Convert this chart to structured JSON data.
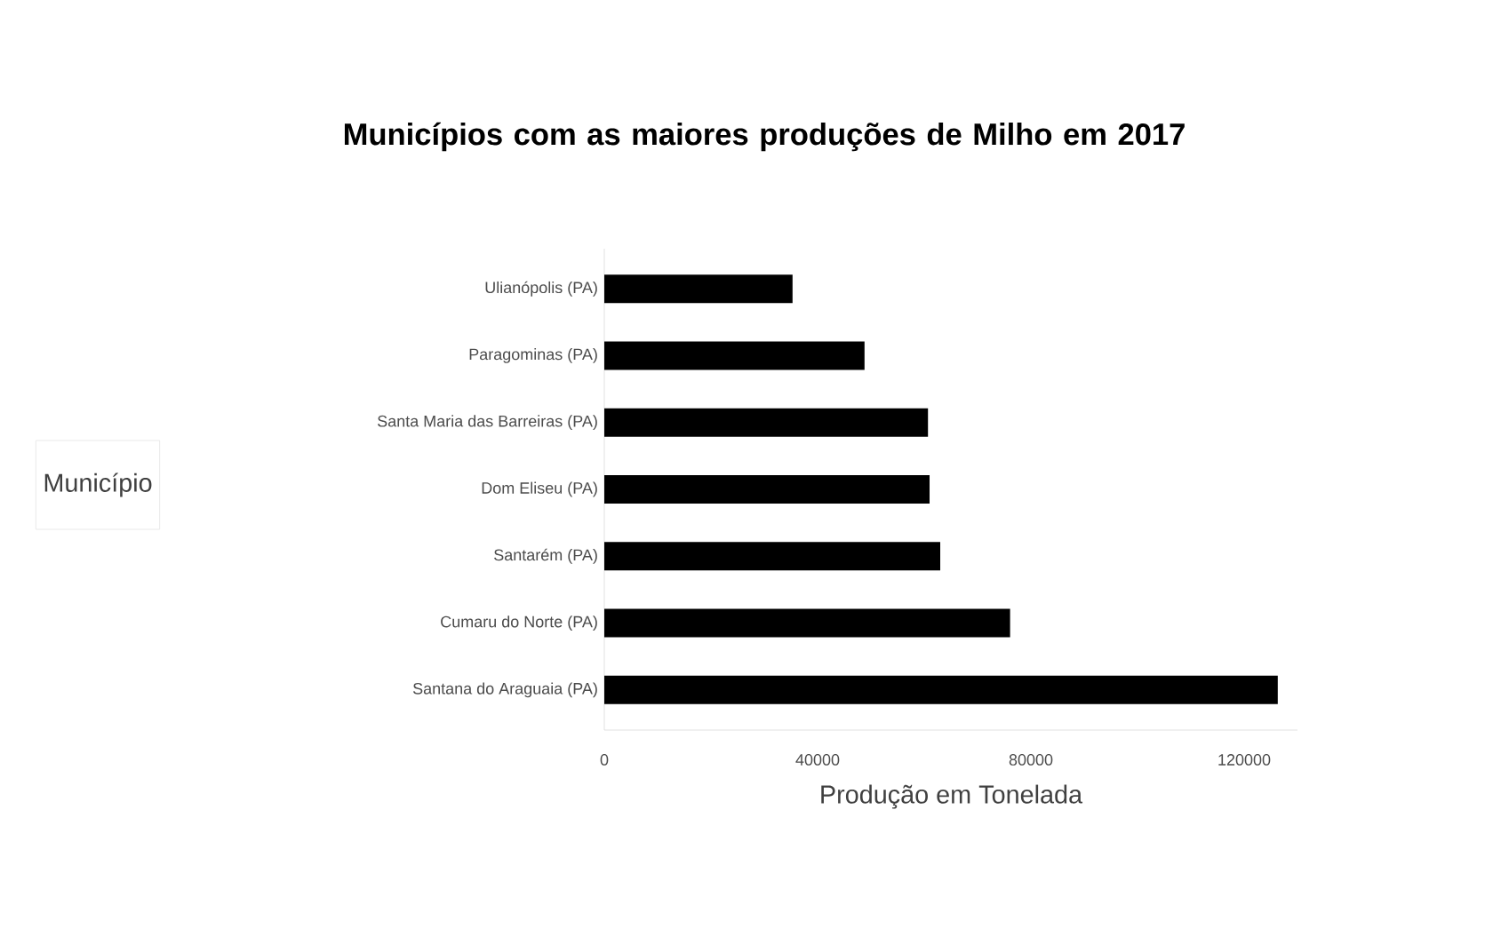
{
  "chart_data": {
    "type": "bar",
    "orientation": "horizontal",
    "title": "Municípios com as maiores produções de Milho em 2017",
    "xlabel": "Produção em Tonelada",
    "annotations": [
      "Município"
    ],
    "categories": [
      "Ulianópolis (PA)",
      "Paragominas (PA)",
      "Santa Maria das Barreiras (PA)",
      "Dom Eliseu (PA)",
      "Santarém (PA)",
      "Cumaru do Norte (PA)",
      "Santana do Araguaia (PA)"
    ],
    "values": [
      35300,
      48800,
      60700,
      61000,
      63000,
      76100,
      126300
    ],
    "color": "#000000",
    "xlim": [
      0,
      130000
    ],
    "xticks": [
      0,
      40000,
      80000,
      120000
    ],
    "grid": false
  }
}
